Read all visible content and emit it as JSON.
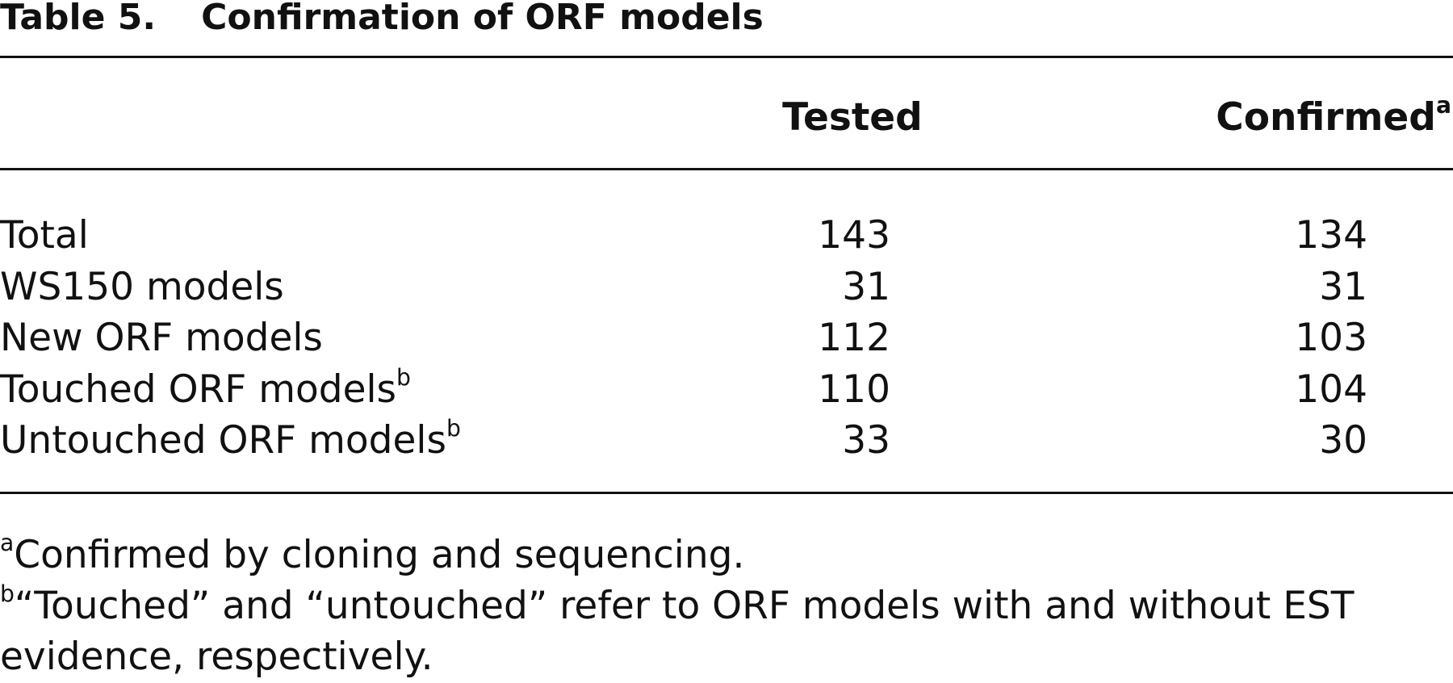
{
  "title": {
    "label": "Table 5.",
    "text": "Confirmation of ORF models"
  },
  "table": {
    "header": [
      {
        "text": "Tested"
      },
      {
        "text": "Confirmed",
        "note": "a"
      }
    ],
    "rows": [
      {
        "label": "Total",
        "tested": 143,
        "confirmed": 134
      },
      {
        "label": "WS150 models",
        "tested": 31,
        "confirmed": 31
      },
      {
        "label": "New ORF models",
        "tested": 112,
        "confirmed": 103
      },
      {
        "label": "Touched ORF models",
        "note": "b",
        "tested": 110,
        "confirmed": 104
      },
      {
        "label": "Untouched ORF models",
        "note": "b",
        "tested": 33,
        "confirmed": 30
      }
    ]
  },
  "footnotes": [
    {
      "marker": "a",
      "text": "Confirmed by cloning and sequencing."
    },
    {
      "marker": "b",
      "text": "“Touched” and “untouched” refer to ORF models with and without EST evidence, respectively."
    }
  ]
}
